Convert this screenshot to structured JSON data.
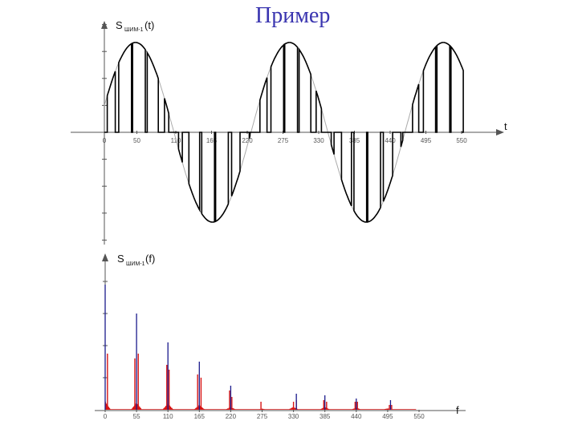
{
  "slide": {
    "title": "Пример"
  },
  "chart_data": [
    {
      "type": "line",
      "ylabel_main": "S",
      "ylabel_sub": "ШИМ-1",
      "ylabel_arg": "(t)",
      "xlabel": "t",
      "x_ticks": [
        0,
        50,
        110,
        165,
        220,
        275,
        330,
        385,
        440,
        495,
        550
      ],
      "x_tick_labels": [
        "0",
        "50",
        "110",
        "165",
        "220",
        "275",
        "330",
        "385",
        "440",
        "495",
        "550"
      ],
      "xlim": [
        0,
        560
      ],
      "ylim": [
        -1.22,
        1.3
      ],
      "y_ticks": [
        -1.2,
        -0.9,
        -0.6,
        -0.3,
        0,
        0.3,
        0.6,
        0.9,
        1.2
      ],
      "sine": {
        "amplitude": 1.0,
        "period": 237,
        "phase_start": 0.3
      },
      "pulse_period": 21.3,
      "series": [
        {
          "role": "modulating-sine",
          "color": "#aaaaaa"
        },
        {
          "role": "pwm-signal",
          "color": "#000000"
        }
      ]
    },
    {
      "type": "bar",
      "ylabel_main": "S",
      "ylabel_sub": "ШИМ-1",
      "ylabel_arg": "(f)",
      "xlabel": "f",
      "x_ticks": [
        0,
        55,
        110,
        165,
        220,
        275,
        330,
        385,
        440,
        495,
        550
      ],
      "x_tick_labels": [
        "0",
        "55",
        "110",
        "165",
        "220",
        "275",
        "330",
        "385",
        "440",
        "495",
        "550"
      ],
      "xlim": [
        0,
        570
      ],
      "ylim": [
        0,
        1.0
      ],
      "y_ticks": [
        0.2,
        0.4,
        0.6,
        0.8
      ],
      "series": [
        {
          "role": "blue-spectral-lines",
          "color": "#1a1a8c",
          "x": [
            0,
            55,
            110,
            165,
            220,
            335,
            385,
            440,
            500
          ],
          "values": [
            0.78,
            0.6,
            0.42,
            0.3,
            0.15,
            0.1,
            0.09,
            0.07,
            0.06
          ]
        },
        {
          "role": "red-spectral-lines",
          "color": "#d81414",
          "x": [
            4,
            52,
            58,
            108,
            112,
            162,
            168,
            218,
            222,
            273,
            330,
            335,
            383,
            388,
            438,
            442,
            498,
            502
          ],
          "values": [
            0.35,
            0.32,
            0.35,
            0.28,
            0.25,
            0.22,
            0.2,
            0.12,
            0.08,
            0.05,
            0.05,
            0.06,
            0.06,
            0.05,
            0.05,
            0.05,
            0.03,
            0.03
          ]
        }
      ]
    }
  ]
}
